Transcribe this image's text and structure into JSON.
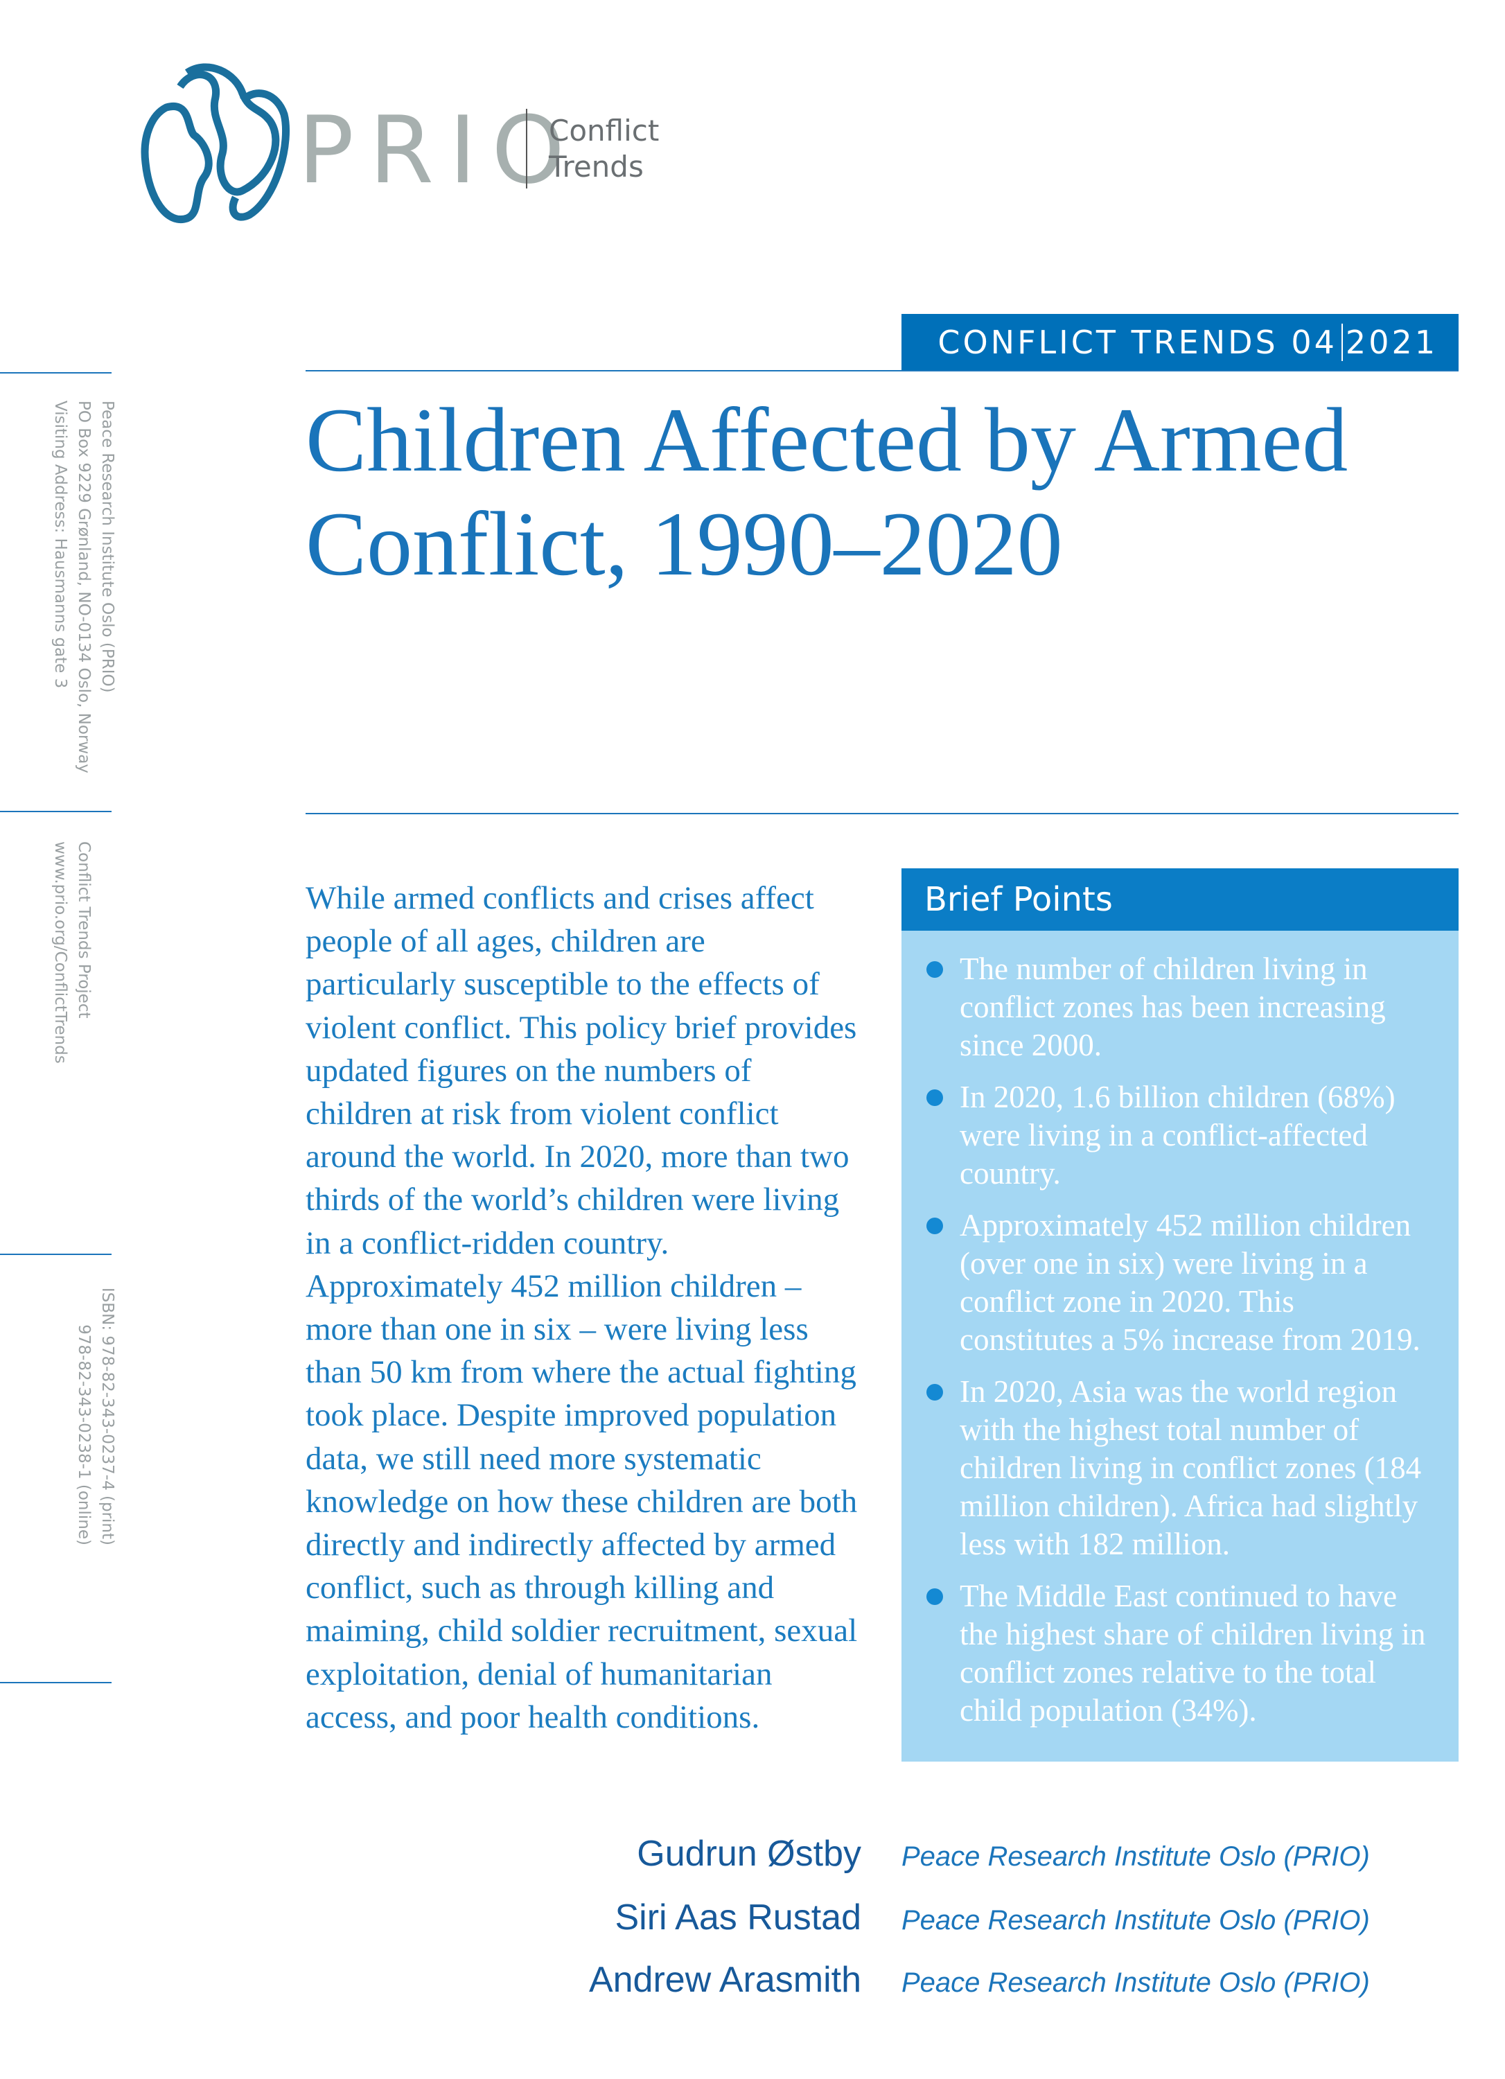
{
  "header": {
    "logo": "PRIO",
    "series_lines": [
      "Conflict",
      "Trends"
    ]
  },
  "sidebar": {
    "address": [
      "Peace Research Institute Oslo (PRIO)",
      "PO Box 9229 Grønland, NO-0134 Oslo, Norway",
      "Visiting Address: Hausmanns gate 3"
    ],
    "project": [
      "Conflict Trends Project",
      "www.prio.org/ConflictTrends"
    ],
    "isbn": [
      "ISBN: 978-82-343-0237-4 (print)",
      "978-82-343-0238-1 (online)"
    ]
  },
  "banner": {
    "series": "CONFLICT TRENDS",
    "issue": "04",
    "year": "2021"
  },
  "title_lines": [
    "Children Affected by Armed",
    "Conflict, 1990–2020"
  ],
  "intro": "While armed conflicts and crises affect people of all ages, children are particularly susceptible to the effects of violent conflict. This policy brief provides updated figures on the numbers of children at risk from violent conflict around the world. In 2020, more than two thirds of the world’s children were living in a conflict-ridden country. Approximately 452 million children – more than one in six – were living less than 50 km from where the actual fighting took place. Despite improved population data, we still need more systematic knowledge on how these children are both directly and indirectly affected by armed conflict, such as through killing and maiming, child soldier recruitment, sexual exploitation, denial of humanitarian access, and poor health conditions.",
  "brief_points": {
    "heading": "Brief Points",
    "items": [
      "The number of children living in conflict zones has been increasing since 2000.",
      "In 2020, 1.6 billion children (68%) were living in a conflict-affected country.",
      "Approximately 452 million children (over one in six) were living in a conflict zone in 2020. This constitutes a 5% increase from 2019.",
      "In 2020, Asia was the world region with the highest total number of children living in conflict zones (184 million children). Africa had slightly less with 182 million.",
      "The Middle East continued to have the highest share of children living in conflict zones relative to the total child population (34%)."
    ]
  },
  "authors": [
    {
      "name": "Gudrun Østby",
      "affiliation": "Peace Research Institute Oslo (PRIO)"
    },
    {
      "name": "Siri Aas Rustad",
      "affiliation": "Peace Research Institute Oslo (PRIO)"
    },
    {
      "name": "Andrew Arasmith",
      "affiliation": "Peace Research Institute Oslo (PRIO)"
    }
  ]
}
